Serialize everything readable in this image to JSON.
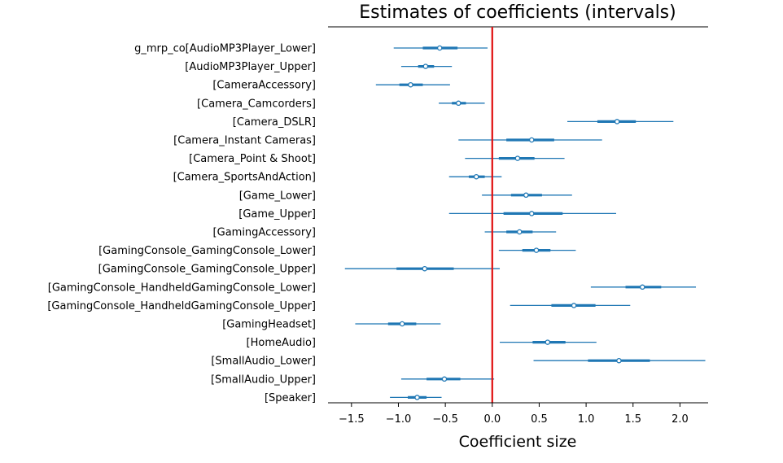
{
  "chart_data": {
    "type": "forest",
    "title": "Estimates of coefficients (intervals)",
    "xlabel": "Coefficient size",
    "ylabel": "",
    "xlim": [
      -1.75,
      2.3
    ],
    "xticks": [
      -1.5,
      -1.0,
      -0.5,
      0.0,
      0.5,
      1.0,
      1.5,
      2.0
    ],
    "xtick_labels": [
      "−1.5",
      "−1.0",
      "−0.5",
      "0.0",
      "0.5",
      "1.0",
      "1.5",
      "2.0"
    ],
    "reference_line": 0.0,
    "colors": {
      "interval": "#1f77b4",
      "reference": "#e01010",
      "axis": "#000000"
    },
    "categories": [
      "g_mrp_co[AudioMP3Player_Lower]",
      "[AudioMP3Player_Upper]",
      "[CameraAccessory]",
      "[Camera_Camcorders]",
      "[Camera_DSLR]",
      "[Camera_Instant Cameras]",
      "[Camera_Point & Shoot]",
      "[Camera_SportsAndAction]",
      "[Game_Lower]",
      "[Game_Upper]",
      "[GamingAccessory]",
      "[GamingConsole_GamingConsole_Lower]",
      "[GamingConsole_GamingConsole_Upper]",
      "[GamingConsole_HandheldGamingConsole_Lower]",
      "[GamingConsole_HandheldGamingConsole_Upper]",
      "[GamingHeadset]",
      "[HomeAudio]",
      "[SmallAudio_Lower]",
      "[SmallAudio_Upper]",
      "[Speaker]"
    ],
    "series": [
      {
        "points": [
          {
            "mean": -0.56,
            "inner": [
              -0.74,
              -0.37
            ],
            "outer": [
              -1.05,
              -0.05
            ]
          },
          {
            "mean": -0.71,
            "inner": [
              -0.79,
              -0.62
            ],
            "outer": [
              -0.97,
              -0.43
            ]
          },
          {
            "mean": -0.87,
            "inner": [
              -0.99,
              -0.74
            ],
            "outer": [
              -1.24,
              -0.45
            ]
          },
          {
            "mean": -0.36,
            "inner": [
              -0.43,
              -0.28
            ],
            "outer": [
              -0.57,
              -0.08
            ]
          },
          {
            "mean": 1.33,
            "inner": [
              1.12,
              1.53
            ],
            "outer": [
              0.8,
              1.93
            ]
          },
          {
            "mean": 0.42,
            "inner": [
              0.15,
              0.66
            ],
            "outer": [
              -0.36,
              1.17
            ]
          },
          {
            "mean": 0.27,
            "inner": [
              0.07,
              0.45
            ],
            "outer": [
              -0.29,
              0.77
            ]
          },
          {
            "mean": -0.17,
            "inner": [
              -0.25,
              -0.08
            ],
            "outer": [
              -0.46,
              0.1
            ]
          },
          {
            "mean": 0.36,
            "inner": [
              0.2,
              0.53
            ],
            "outer": [
              -0.11,
              0.85
            ]
          },
          {
            "mean": 0.42,
            "inner": [
              0.12,
              0.75
            ],
            "outer": [
              -0.46,
              1.32
            ]
          },
          {
            "mean": 0.29,
            "inner": [
              0.15,
              0.43
            ],
            "outer": [
              -0.08,
              0.68
            ]
          },
          {
            "mean": 0.47,
            "inner": [
              0.32,
              0.62
            ],
            "outer": [
              0.07,
              0.89
            ]
          },
          {
            "mean": -0.72,
            "inner": [
              -1.02,
              -0.41
            ],
            "outer": [
              -1.57,
              0.08
            ]
          },
          {
            "mean": 1.6,
            "inner": [
              1.42,
              1.8
            ],
            "outer": [
              1.05,
              2.17
            ]
          },
          {
            "mean": 0.87,
            "inner": [
              0.63,
              1.1
            ],
            "outer": [
              0.19,
              1.47
            ]
          },
          {
            "mean": -0.96,
            "inner": [
              -1.11,
              -0.81
            ],
            "outer": [
              -1.46,
              -0.55
            ]
          },
          {
            "mean": 0.59,
            "inner": [
              0.43,
              0.78
            ],
            "outer": [
              0.08,
              1.11
            ]
          },
          {
            "mean": 1.35,
            "inner": [
              1.02,
              1.68
            ],
            "outer": [
              0.44,
              2.27
            ]
          },
          {
            "mean": -0.51,
            "inner": [
              -0.7,
              -0.34
            ],
            "outer": [
              -0.97,
              0.02
            ]
          },
          {
            "mean": -0.8,
            "inner": [
              -0.9,
              -0.7
            ],
            "outer": [
              -1.09,
              -0.54
            ]
          }
        ]
      }
    ]
  }
}
